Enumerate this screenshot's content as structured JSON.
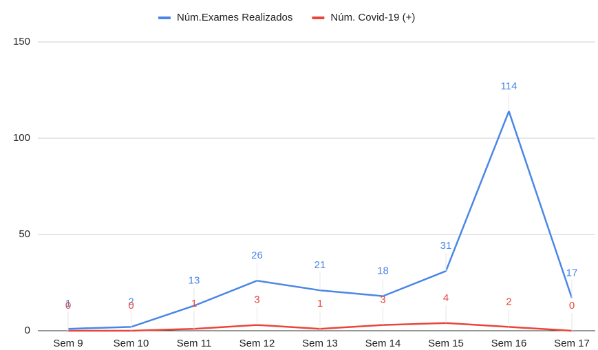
{
  "chart_data": {
    "type": "line",
    "categories": [
      "Sem 9",
      "Sem 10",
      "Sem 11",
      "Sem 12",
      "Sem 13",
      "Sem 14",
      "Sem 15",
      "Sem 16",
      "Sem 17"
    ],
    "series": [
      {
        "name": "Núm.Exames Realizados",
        "color": "#4a86e8",
        "values": [
          1,
          2,
          13,
          26,
          21,
          18,
          31,
          114,
          17
        ]
      },
      {
        "name": "Núm. Covid-19 (+)",
        "color": "#e8453c",
        "values": [
          0,
          0,
          1,
          3,
          1,
          3,
          4,
          2,
          0
        ]
      }
    ],
    "ylim": [
      0,
      150
    ],
    "yticks": [
      0,
      50,
      100,
      150
    ],
    "grid": true,
    "legend": "top"
  }
}
